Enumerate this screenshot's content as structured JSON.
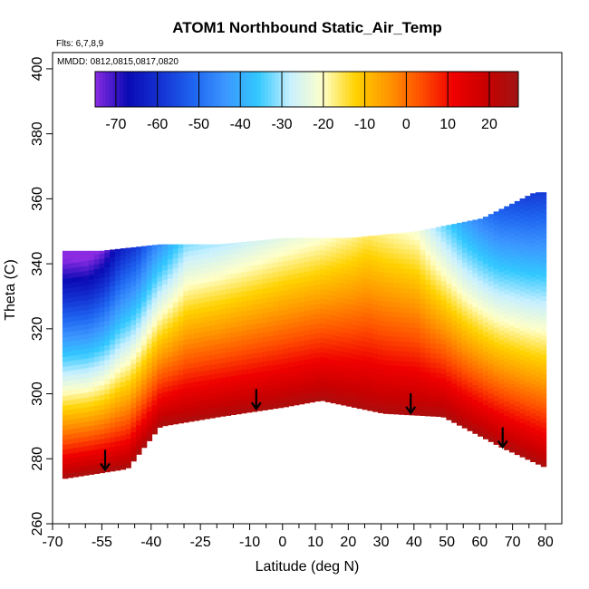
{
  "chart_data": {
    "type": "heatmap",
    "title": "ATOM1 Northbound Static_Air_Temp",
    "annotation_flights": "Flts: 6,7,8,9",
    "annotation_dates": "MMDD: 0812,0815,0817,0820",
    "xlabel": "Latitude (deg N)",
    "ylabel": "Theta (C)",
    "xlim": [
      -70,
      85
    ],
    "ylim": [
      260,
      405
    ],
    "x_ticks": [
      -70,
      -55,
      -40,
      -25,
      -10,
      0,
      10,
      20,
      30,
      40,
      50,
      60,
      70,
      80
    ],
    "y_ticks": [
      260,
      280,
      300,
      320,
      340,
      360,
      380,
      400
    ],
    "colorbar": {
      "range": [
        -75,
        27
      ],
      "ticks": [
        -70,
        -60,
        -50,
        -40,
        -30,
        -20,
        -10,
        0,
        10,
        20
      ],
      "colors": [
        "#8a2be2",
        "#0a0ab4",
        "#1432d2",
        "#1e64f0",
        "#3c96ff",
        "#32c8ff",
        "#c8f0ff",
        "#ffffc8",
        "#ffd200",
        "#ff9600",
        "#ff5000",
        "#f00000",
        "#c80000",
        "#a01414"
      ]
    },
    "upper_boundary": [
      [
        -56,
        344
      ],
      [
        -38,
        346
      ],
      [
        -20,
        346
      ],
      [
        0,
        348
      ],
      [
        20,
        348
      ],
      [
        40,
        350
      ],
      [
        60,
        354
      ],
      [
        76,
        362
      ]
    ],
    "lower_boundary": [
      [
        -67,
        274
      ],
      [
        -48,
        277
      ],
      [
        -38,
        290
      ],
      [
        -20,
        293
      ],
      [
        0,
        296
      ],
      [
        11,
        298
      ],
      [
        30,
        294
      ],
      [
        48,
        293
      ],
      [
        67,
        283
      ],
      [
        80,
        277
      ]
    ],
    "core_points": [
      [
        -60,
        -65
      ],
      [
        -55,
        -60
      ],
      [
        -50,
        -50
      ],
      [
        -45,
        -45
      ],
      [
        -40,
        -35
      ],
      [
        -30,
        -20
      ],
      [
        -10,
        -15
      ],
      [
        10,
        -10
      ],
      [
        25,
        -5
      ],
      [
        40,
        -10
      ],
      [
        55,
        -30
      ],
      [
        65,
        -40
      ],
      [
        75,
        -45
      ]
    ],
    "arrows_x": [
      -54,
      -8,
      39,
      67
    ]
  }
}
